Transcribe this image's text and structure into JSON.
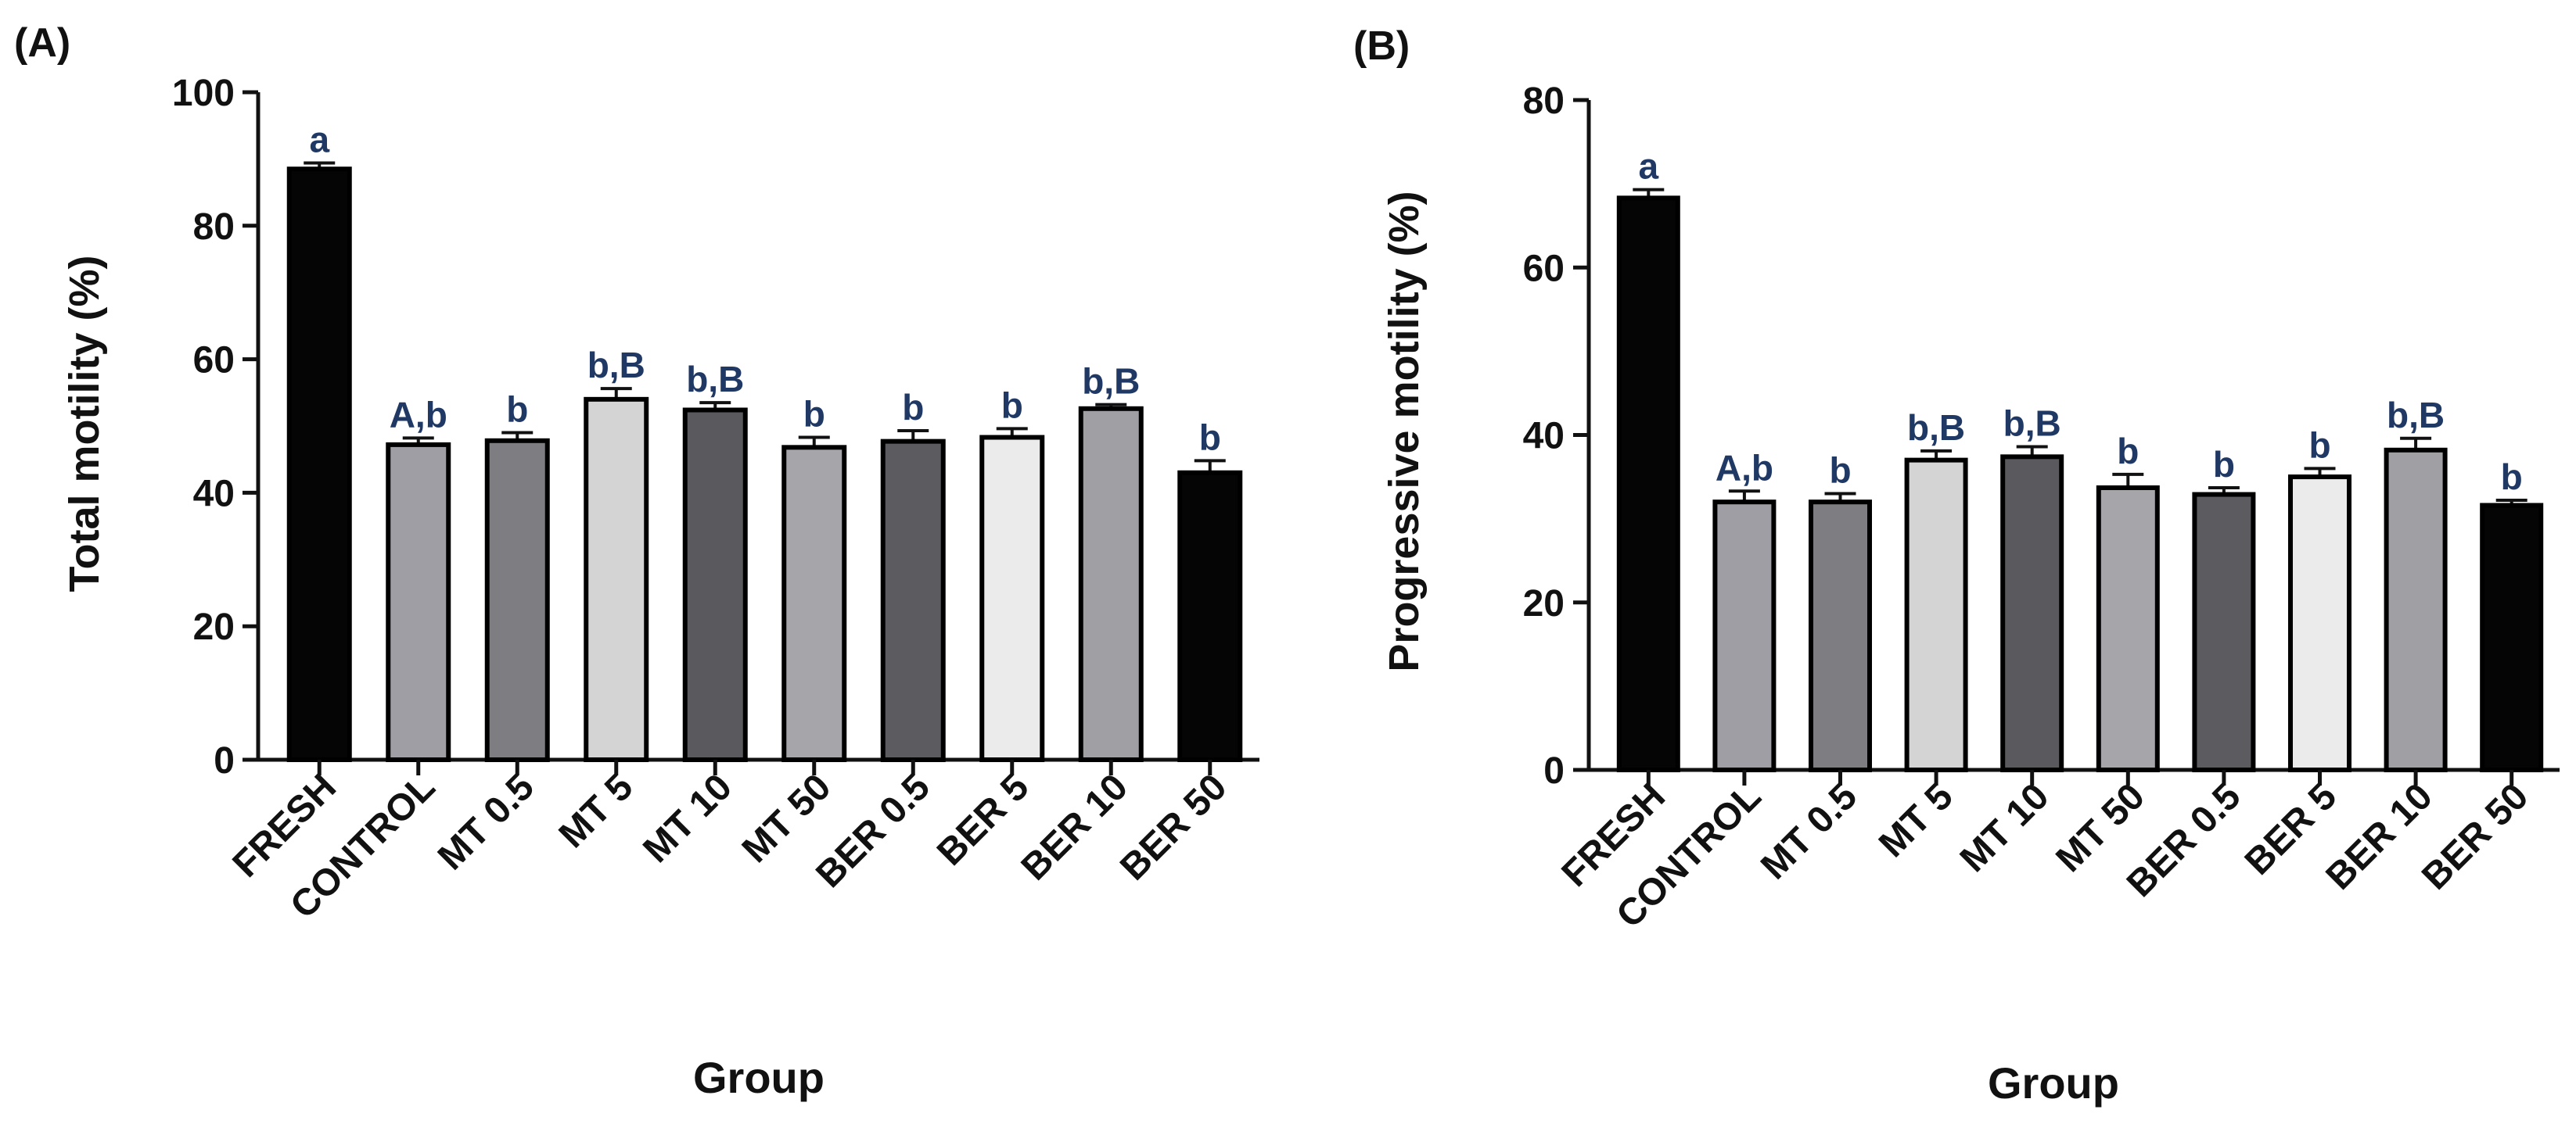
{
  "figure": {
    "colors": {
      "axis": "#111111",
      "ink": "#111111",
      "sig_letters": "#1f3864",
      "background": "#ffffff"
    }
  },
  "chart_data": [
    {
      "panel": "(A)",
      "type": "bar",
      "xlabel": "Group",
      "ylabel": "Total motility (%)",
      "ylim": [
        0,
        100
      ],
      "yticks": [
        0,
        20,
        40,
        60,
        80,
        100
      ],
      "categories": [
        "FRESH",
        "CONTROL",
        "MT 0.5",
        "MT 5",
        "MT 10",
        "MT 50",
        "BER 0.5",
        "BER 5",
        "BER 10",
        "BER 50"
      ],
      "values": [
        88.5,
        47.2,
        47.8,
        54.0,
        52.4,
        46.8,
        47.7,
        48.3,
        52.6,
        43.0
      ],
      "errors": [
        0.9,
        1.0,
        1.2,
        1.6,
        1.1,
        1.5,
        1.6,
        1.3,
        0.6,
        1.8
      ],
      "significance": [
        "a",
        "A,b",
        "b",
        "b,B",
        "b,B",
        "b",
        "b",
        "b",
        "b,B",
        "b"
      ],
      "bar_colors": [
        "#050505",
        "#9e9ea4",
        "#7e7e82",
        "#d4d4d4",
        "#5a5a5e",
        "#a6a6aa",
        "#5c5c60",
        "#ebebeb",
        "#a0a0a4",
        "#050505"
      ]
    },
    {
      "panel": "(B)",
      "type": "bar",
      "xlabel": "Group",
      "ylabel": "Progressive motility (%)",
      "ylim": [
        0,
        80
      ],
      "yticks": [
        0,
        20,
        40,
        60,
        80
      ],
      "categories": [
        "FRESH",
        "CONTROL",
        "MT 0.5",
        "MT 5",
        "MT 10",
        "MT 50",
        "BER 0.5",
        "BER 5",
        "BER 10",
        "BER 50"
      ],
      "values": [
        68.3,
        32.0,
        32.0,
        37.0,
        37.4,
        33.7,
        32.9,
        35.0,
        38.2,
        31.6
      ],
      "errors": [
        1.0,
        1.3,
        1.0,
        1.1,
        1.2,
        1.6,
        0.8,
        1.0,
        1.4,
        0.6
      ],
      "significance": [
        "a",
        "A,b",
        "b",
        "b,B",
        "b,B",
        "b",
        "b",
        "b",
        "b,B",
        "b"
      ],
      "bar_colors": [
        "#050505",
        "#9e9ea4",
        "#7e7e82",
        "#d4d4d4",
        "#5a5a5e",
        "#a6a6aa",
        "#5c5c60",
        "#ebebeb",
        "#a0a0a4",
        "#050505"
      ]
    }
  ]
}
